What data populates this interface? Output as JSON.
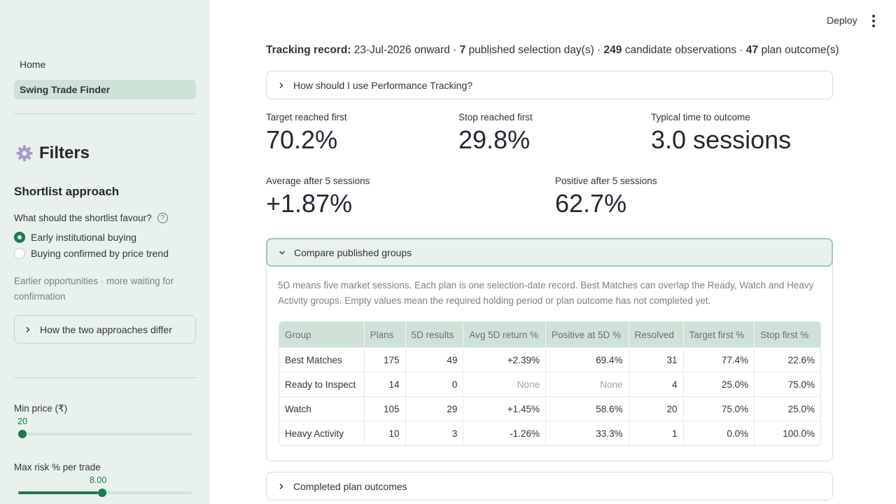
{
  "sidebar": {
    "nav": [
      {
        "label": "Home",
        "active": false
      },
      {
        "label": "Swing Trade Finder",
        "active": true
      }
    ],
    "filters_title": "Filters",
    "section_title": "Shortlist approach",
    "question": "What should the shortlist favour?",
    "radio_options": [
      {
        "label": "Early institutional buying",
        "selected": true
      },
      {
        "label": "Buying confirmed by price trend",
        "selected": false
      }
    ],
    "caption": "Earlier opportunities · more waiting for confirmation",
    "approach_expander": "How the two approaches differ",
    "min_price": {
      "label": "Min price (₹)",
      "value": "20",
      "fraction": 0.0
    },
    "max_risk": {
      "label": "Max risk % per trade",
      "value": "8.00",
      "fraction": 0.46
    }
  },
  "header": {
    "deploy_label": "Deploy"
  },
  "tracking": {
    "label": "Tracking record:",
    "start": "23-Jul-2026 onward ·",
    "days": "7",
    "days_text": "published selection day(s) ·",
    "observations": "249",
    "observations_text": "candidate observations ·",
    "outcomes": "47",
    "outcomes_text": "plan outcome(s)"
  },
  "usage_expander": "How should I use Performance Tracking?",
  "metrics": [
    {
      "label": "Target reached first",
      "value": "70.2%"
    },
    {
      "label": "Stop reached first",
      "value": "29.8%"
    },
    {
      "label": "Typical time to outcome",
      "value": "3.0 sessions"
    },
    {
      "label": "Average after 5 sessions",
      "value": "+1.87%"
    },
    {
      "label": "Positive after 5 sessions",
      "value": "62.7%"
    }
  ],
  "compare": {
    "title": "Compare published groups",
    "note": "5D means five market sessions. Each plan is one selection-date record. Best Matches can overlap the Ready, Watch and Heavy Activity groups. Empty values mean the required holding period or plan outcome has not completed yet.",
    "columns": [
      "Group",
      "Plans",
      "5D results",
      "Avg 5D return %",
      "Positive at 5D %",
      "Resolved",
      "Target first %",
      "Stop first %"
    ],
    "rows": [
      [
        "Best Matches",
        "175",
        "49",
        "+2.39%",
        "69.4%",
        "31",
        "77.4%",
        "22.6%"
      ],
      [
        "Ready to Inspect",
        "14",
        "0",
        "None",
        "None",
        "4",
        "25.0%",
        "75.0%"
      ],
      [
        "Watch",
        "105",
        "29",
        "+1.45%",
        "58.6%",
        "20",
        "75.0%",
        "25.0%"
      ],
      [
        "Heavy Activity",
        "10",
        "3",
        "-1.26%",
        "33.3%",
        "1",
        "0.0%",
        "100.0%"
      ]
    ]
  },
  "outcomes_expander": "Completed plan outcomes"
}
